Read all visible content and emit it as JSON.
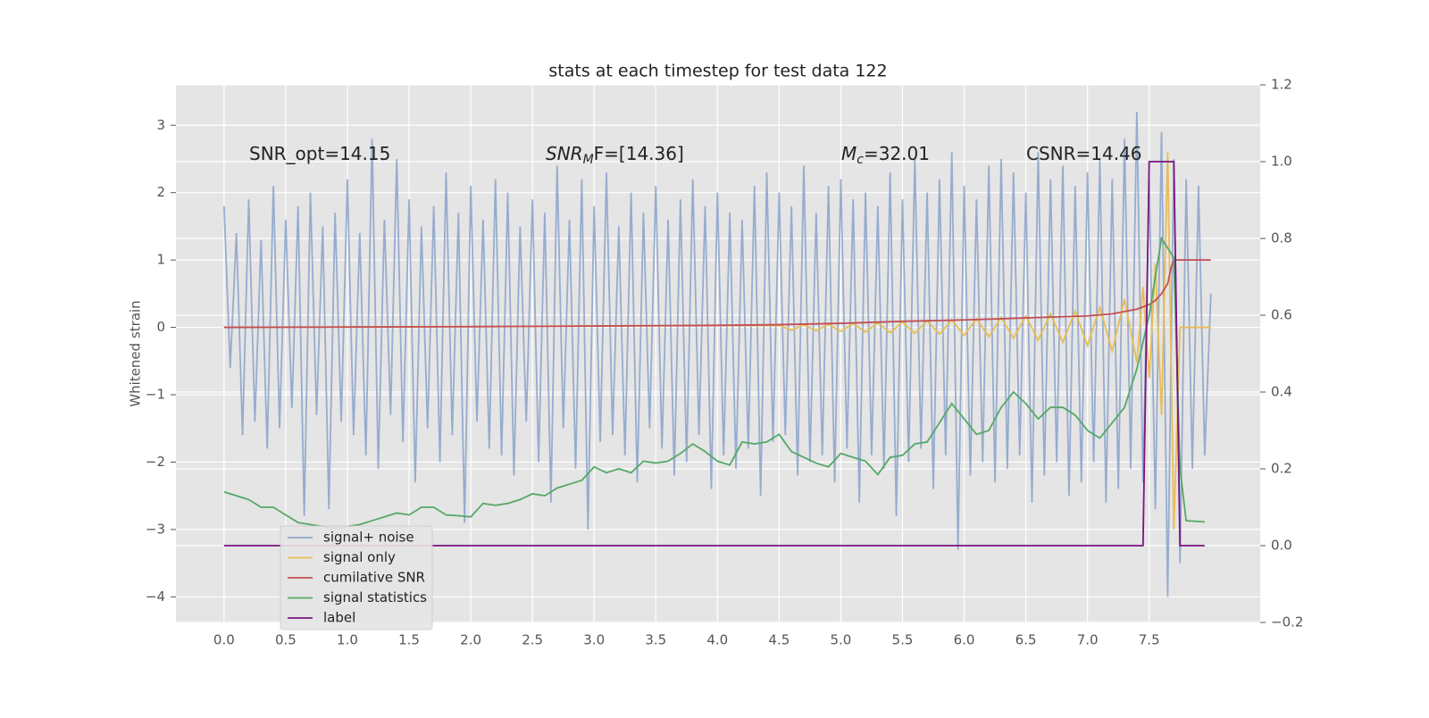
{
  "chart_data": {
    "type": "line",
    "title": "stats at each timestep for test data 122",
    "ylabel": "Whitened strain",
    "grid": true,
    "legend": "lower left",
    "xlim": [
      -0.39,
      8.4
    ],
    "ylim": [
      -4.38,
      3.6
    ],
    "y2lim": [
      -0.2,
      1.2
    ],
    "xticks": [
      {
        "value": 0,
        "label": "0.0"
      },
      0.5,
      {
        "value": 1,
        "label": "1.0"
      },
      1.5,
      {
        "value": 2,
        "label": "2.0"
      },
      2.5,
      {
        "value": 3,
        "label": "3.0"
      },
      3.5,
      {
        "value": 4,
        "label": "4.0"
      },
      4.5,
      {
        "value": 5,
        "label": "5.0"
      },
      5.5,
      {
        "value": 6,
        "label": "6.0"
      },
      6.5,
      {
        "value": 7,
        "label": "7.0"
      },
      7.5
    ],
    "yticks": [
      {
        "value": -4,
        "label": "−4"
      },
      {
        "value": -3,
        "label": "−3"
      },
      {
        "value": -2,
        "label": "−2"
      },
      {
        "value": -1,
        "label": "−1"
      },
      0,
      1,
      2,
      3
    ],
    "y2ticks": [
      {
        "value": -0.2,
        "label": "−0.2"
      },
      {
        "value": 0,
        "label": "0.0"
      },
      0.2,
      0.4,
      0.6,
      0.8,
      {
        "value": 1,
        "label": "1.0"
      },
      1.2
    ],
    "annotations": [
      {
        "text": "SNR_opt=14.15"
      },
      {
        "text": "SNR",
        "sub": "M",
        "after": "F=[14.36]",
        "italic": true
      },
      {
        "text": "M",
        "sub": "c",
        "after": "=32.01",
        "italic": true
      },
      {
        "text": "CSNR=14.46"
      }
    ],
    "series": [
      {
        "name": "signal+ noise",
        "color": "#8ea5cb",
        "x": [
          0,
          0.05,
          0.1,
          0.15,
          0.2,
          0.25,
          0.3,
          0.35,
          0.4,
          0.45,
          0.5,
          0.55,
          0.6,
          0.65,
          0.7,
          0.75,
          0.8,
          0.85,
          0.9,
          0.95,
          1,
          1.05,
          1.1,
          1.15,
          1.2,
          1.25,
          1.3,
          1.35,
          1.4,
          1.45,
          1.5,
          1.55,
          1.6,
          1.65,
          1.7,
          1.75,
          1.8,
          1.85,
          1.9,
          1.95,
          2,
          2.05,
          2.1,
          2.15,
          2.2,
          2.25,
          2.3,
          2.35,
          2.4,
          2.45,
          2.5,
          2.55,
          2.6,
          2.65,
          2.7,
          2.75,
          2.8,
          2.85,
          2.9,
          2.95,
          3,
          3.05,
          3.1,
          3.15,
          3.2,
          3.25,
          3.3,
          3.35,
          3.4,
          3.45,
          3.5,
          3.55,
          3.6,
          3.65,
          3.7,
          3.75,
          3.8,
          3.85,
          3.9,
          3.95,
          4,
          4.05,
          4.1,
          4.15,
          4.2,
          4.25,
          4.3,
          4.35,
          4.4,
          4.45,
          4.5,
          4.55,
          4.6,
          4.65,
          4.7,
          4.75,
          4.8,
          4.85,
          4.9,
          4.95,
          5,
          5.05,
          5.1,
          5.15,
          5.2,
          5.25,
          5.3,
          5.35,
          5.4,
          5.45,
          5.5,
          5.55,
          5.6,
          5.65,
          5.7,
          5.75,
          5.8,
          5.85,
          5.9,
          5.95,
          6,
          6.05,
          6.1,
          6.15,
          6.2,
          6.25,
          6.3,
          6.35,
          6.4,
          6.45,
          6.5,
          6.55,
          6.6,
          6.65,
          6.7,
          6.75,
          6.8,
          6.85,
          6.9,
          6.95,
          7,
          7.05,
          7.1,
          7.15,
          7.2,
          7.25,
          7.3,
          7.35,
          7.4,
          7.45,
          7.5,
          7.55,
          7.6,
          7.65,
          7.7,
          7.75,
          7.8,
          7.85,
          7.9,
          7.95,
          8
        ],
        "values": [
          1.8,
          -0.6,
          1.4,
          -1.6,
          1.9,
          -1.4,
          1.3,
          -1.8,
          2.1,
          -1.5,
          1.6,
          -1.2,
          1.8,
          -2.8,
          2.0,
          -1.3,
          1.5,
          -2.7,
          1.7,
          -1.4,
          2.2,
          -1.6,
          1.4,
          -1.9,
          2.8,
          -2.1,
          1.6,
          -1.3,
          2.5,
          -1.7,
          1.9,
          -2.3,
          1.5,
          -1.5,
          1.8,
          -2.0,
          2.3,
          -1.6,
          1.7,
          -2.9,
          2.1,
          -1.4,
          1.6,
          -1.8,
          2.2,
          -1.9,
          2.0,
          -2.2,
          1.5,
          -1.4,
          1.9,
          -2.0,
          1.7,
          -2.6,
          2.4,
          -1.5,
          1.6,
          -2.1,
          2.2,
          -3.0,
          1.8,
          -1.7,
          2.3,
          -1.6,
          1.5,
          -1.9,
          2.0,
          -2.3,
          1.7,
          -1.5,
          2.1,
          -1.8,
          1.6,
          -2.2,
          1.9,
          -2.0,
          2.2,
          -1.6,
          1.8,
          -2.4,
          2.0,
          -1.9,
          1.7,
          -2.1,
          1.6,
          -1.8,
          2.1,
          -2.5,
          2.3,
          -1.7,
          2.0,
          -1.6,
          1.8,
          -2.2,
          2.4,
          -2.0,
          1.7,
          -1.9,
          2.1,
          -2.3,
          2.2,
          -1.8,
          1.9,
          -2.6,
          2.0,
          -1.9,
          1.8,
          -2.1,
          2.3,
          -2.8,
          1.9,
          -2.0,
          2.5,
          -1.8,
          2.0,
          -2.4,
          2.2,
          -1.9,
          2.6,
          -3.3,
          2.1,
          -2.2,
          1.9,
          -2.0,
          2.4,
          -2.3,
          2.5,
          -2.1,
          2.3,
          -1.9,
          2.0,
          -2.6,
          2.6,
          -2.2,
          2.2,
          -2.0,
          2.4,
          -2.5,
          2.1,
          -2.3,
          2.3,
          -2.0,
          2.5,
          -2.6,
          2.2,
          -2.4,
          2.8,
          -2.1,
          3.2,
          -2.3,
          2.2,
          -2.7,
          2.9,
          -4.0,
          2.5,
          -3.5,
          2.2,
          -2.1,
          2.1,
          -1.9,
          0.5
        ]
      },
      {
        "name": "signal only",
        "color": "#e8bd55",
        "x": [
          0,
          4.5,
          4.6,
          4.7,
          4.8,
          4.9,
          5.0,
          5.1,
          5.2,
          5.3,
          5.4,
          5.5,
          5.6,
          5.7,
          5.8,
          5.9,
          6.0,
          6.1,
          6.2,
          6.3,
          6.4,
          6.5,
          6.6,
          6.7,
          6.8,
          6.9,
          7.0,
          7.1,
          7.2,
          7.3,
          7.4,
          7.45,
          7.5,
          7.55,
          7.6,
          7.65,
          7.7,
          7.75,
          7.8,
          8.0
        ],
        "values": [
          0,
          0.03,
          -0.04,
          0.04,
          -0.05,
          0.05,
          -0.06,
          0.06,
          -0.07,
          0.07,
          -0.08,
          0.08,
          -0.09,
          0.1,
          -0.1,
          0.11,
          -0.12,
          0.13,
          -0.14,
          0.15,
          -0.16,
          0.17,
          -0.19,
          0.2,
          -0.22,
          0.24,
          -0.27,
          0.3,
          -0.35,
          0.42,
          -0.52,
          0.6,
          -0.75,
          0.95,
          -1.3,
          2.6,
          -3.0,
          0,
          0,
          0
        ]
      },
      {
        "name": "cumilative SNR",
        "color": "#c44e52",
        "x": [
          0,
          1,
          2,
          3,
          4,
          4.5,
          5,
          5.5,
          6,
          6.5,
          7,
          7.2,
          7.4,
          7.5,
          7.55,
          7.6,
          7.65,
          7.68,
          7.7,
          8.0
        ],
        "values": [
          0,
          0.005,
          0.01,
          0.02,
          0.03,
          0.04,
          0.06,
          0.09,
          0.11,
          0.14,
          0.17,
          0.2,
          0.27,
          0.34,
          0.4,
          0.5,
          0.65,
          0.9,
          1.0,
          1.0
        ]
      },
      {
        "name": "signal statistics",
        "color": "#55a868",
        "axis": "y2",
        "x": [
          0,
          0.1,
          0.2,
          0.3,
          0.4,
          0.5,
          0.6,
          0.7,
          0.8,
          0.9,
          1.0,
          1.1,
          1.2,
          1.3,
          1.4,
          1.5,
          1.6,
          1.7,
          1.8,
          1.9,
          2.0,
          2.1,
          2.2,
          2.3,
          2.4,
          2.5,
          2.6,
          2.7,
          2.8,
          2.9,
          3.0,
          3.1,
          3.2,
          3.3,
          3.4,
          3.5,
          3.6,
          3.7,
          3.8,
          3.9,
          4.0,
          4.1,
          4.2,
          4.3,
          4.4,
          4.5,
          4.6,
          4.7,
          4.8,
          4.9,
          5.0,
          5.1,
          5.2,
          5.3,
          5.4,
          5.5,
          5.6,
          5.7,
          5.8,
          5.9,
          6.0,
          6.1,
          6.2,
          6.3,
          6.4,
          6.5,
          6.6,
          6.7,
          6.8,
          6.9,
          7.0,
          7.1,
          7.2,
          7.3,
          7.4,
          7.5,
          7.6,
          7.7,
          7.75,
          7.8,
          7.95
        ],
        "values": [
          0.14,
          0.13,
          0.12,
          0.1,
          0.1,
          0.08,
          0.06,
          0.055,
          0.05,
          0.045,
          0.05,
          0.055,
          0.065,
          0.075,
          0.085,
          0.08,
          0.1,
          0.1,
          0.08,
          0.078,
          0.075,
          0.11,
          0.105,
          0.11,
          0.12,
          0.135,
          0.13,
          0.15,
          0.16,
          0.17,
          0.205,
          0.19,
          0.2,
          0.19,
          0.22,
          0.215,
          0.22,
          0.24,
          0.265,
          0.245,
          0.22,
          0.21,
          0.27,
          0.265,
          0.27,
          0.29,
          0.245,
          0.23,
          0.215,
          0.205,
          0.24,
          0.23,
          0.22,
          0.185,
          0.23,
          0.235,
          0.265,
          0.27,
          0.32,
          0.37,
          0.33,
          0.29,
          0.3,
          0.36,
          0.4,
          0.37,
          0.33,
          0.36,
          0.36,
          0.34,
          0.3,
          0.28,
          0.32,
          0.36,
          0.46,
          0.6,
          0.8,
          0.75,
          0.2,
          0.065,
          0.062
        ]
      },
      {
        "name": "label",
        "color": "#7b1480",
        "axis": "y2",
        "x": [
          0,
          7.45,
          7.5,
          7.7,
          7.75,
          7.95
        ],
        "values": [
          0,
          0,
          1,
          1,
          0,
          0
        ]
      }
    ]
  }
}
